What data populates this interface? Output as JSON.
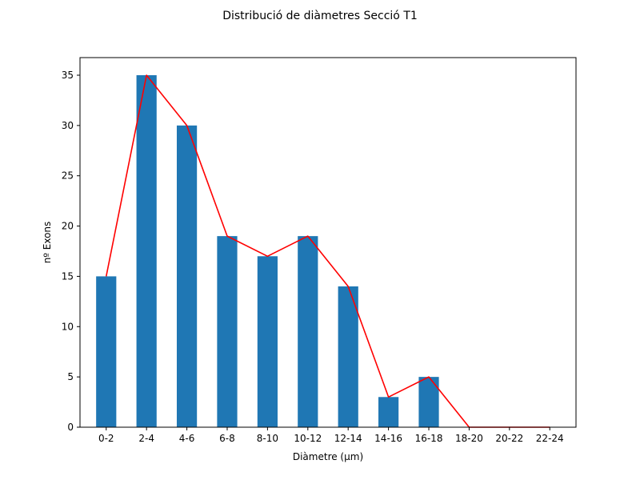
{
  "chart_data": {
    "type": "bar",
    "title": "Distribució de diàmetres Secció T1",
    "xlabel": "Diàmetre (µm)",
    "ylabel": "nº Exons",
    "categories": [
      "0-2",
      "2-4",
      "4-6",
      "6-8",
      "8-10",
      "10-12",
      "12-14",
      "14-16",
      "16-18",
      "18-20",
      "20-22",
      "22-24"
    ],
    "values": [
      15,
      35,
      30,
      19,
      17,
      19,
      14,
      3,
      5,
      0,
      0,
      0
    ],
    "overlay_line": {
      "values": [
        15,
        35,
        30,
        19,
        17,
        19,
        14,
        3,
        5,
        0,
        0,
        0
      ],
      "color": "#ff0000"
    },
    "bar_color": "#1f77b4",
    "ylim": [
      0,
      36.75
    ],
    "yticks": [
      0,
      5,
      10,
      15,
      20,
      25,
      30,
      35
    ],
    "grid": false,
    "legend": "none"
  }
}
